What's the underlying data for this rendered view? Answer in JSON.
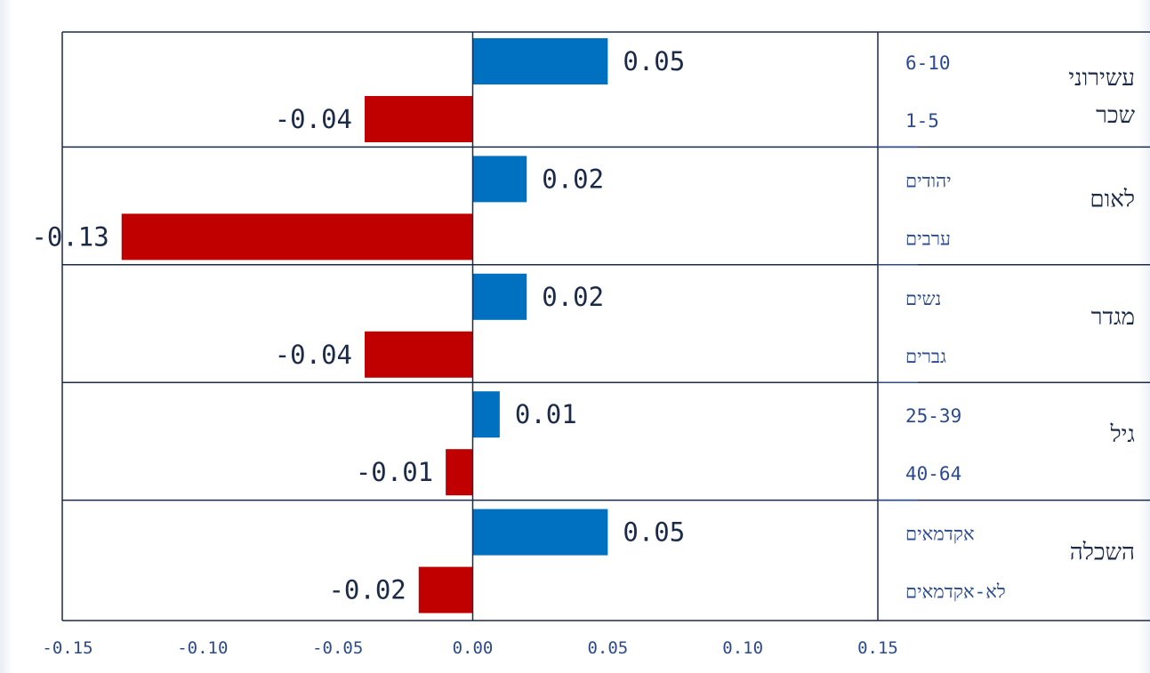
{
  "chart_data": {
    "type": "bar",
    "orientation": "horizontal",
    "xlim": [
      -0.15,
      0.15
    ],
    "x_ticks": [
      "-0.15",
      "-0.10",
      "-0.05",
      "0.00",
      "0.05",
      "0.10",
      "0.15"
    ],
    "colors": {
      "positive": "#0070c0",
      "negative": "#c00000"
    },
    "groups": [
      {
        "name": "עשירוני שכר",
        "name_lines": [
          "עשירוני",
          "שכר"
        ],
        "bars": [
          {
            "category": "6-10",
            "value": 0.05,
            "label": "0.05"
          },
          {
            "category": "1-5",
            "value": -0.04,
            "label": "-0.04"
          }
        ]
      },
      {
        "name": "לאום",
        "name_lines": [
          "לאום"
        ],
        "bars": [
          {
            "category": "יהודים",
            "value": 0.02,
            "label": "0.02"
          },
          {
            "category": "ערבים",
            "value": -0.13,
            "label": "-0.13"
          }
        ]
      },
      {
        "name": "מגדר",
        "name_lines": [
          "מגדר"
        ],
        "bars": [
          {
            "category": "נשים",
            "value": 0.02,
            "label": "0.02"
          },
          {
            "category": "גברים",
            "value": -0.04,
            "label": "-0.04"
          }
        ]
      },
      {
        "name": "גיל",
        "name_lines": [
          "גיל"
        ],
        "bars": [
          {
            "category": "25-39",
            "value": 0.01,
            "label": "0.01"
          },
          {
            "category": "40-64",
            "value": -0.01,
            "label": "-0.01"
          }
        ]
      },
      {
        "name": "השכלה",
        "name_lines": [
          "השכלה"
        ],
        "bars": [
          {
            "category": "אקדמאים",
            "value": 0.05,
            "label": "0.05"
          },
          {
            "category": "לא-אקדמאים",
            "value": -0.02,
            "label": "-0.02"
          }
        ]
      }
    ]
  }
}
